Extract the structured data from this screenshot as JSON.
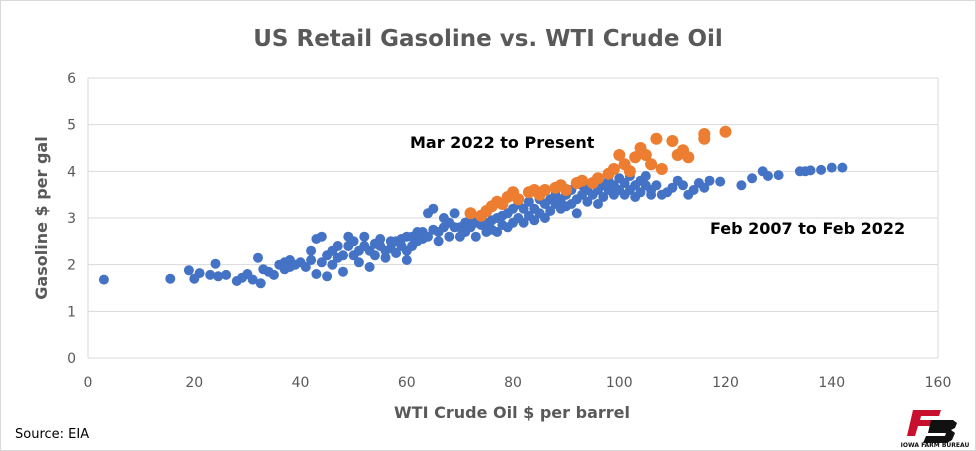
{
  "chart_data": {
    "type": "scatter",
    "title": "US Retail Gasoline vs. WTI Crude Oil",
    "xlabel": "WTI Crude Oil $ per barrel",
    "ylabel": "Gasoline $ per gal",
    "xlim": [
      0,
      160
    ],
    "ylim": [
      0,
      6
    ],
    "xticks": [
      "0",
      "20",
      "40",
      "60",
      "80",
      "100",
      "120",
      "140",
      "160"
    ],
    "yticks": [
      "0",
      "1",
      "2",
      "3",
      "4",
      "5",
      "6"
    ],
    "grid": "horizontal",
    "colors": {
      "blue": "#4472C4",
      "orange": "#ED7D31",
      "grid": "#D9D9D9"
    },
    "series": [
      {
        "label": "Feb 2007 to Feb 2022",
        "color": "#4472C4",
        "points": [
          [
            3,
            1.68
          ],
          [
            15.5,
            1.7
          ],
          [
            19,
            1.88
          ],
          [
            20,
            1.7
          ],
          [
            21,
            1.82
          ],
          [
            23,
            1.78
          ],
          [
            24,
            2.02
          ],
          [
            24.5,
            1.75
          ],
          [
            26,
            1.78
          ],
          [
            28,
            1.65
          ],
          [
            29,
            1.72
          ],
          [
            30,
            1.8
          ],
          [
            31,
            1.68
          ],
          [
            32,
            2.15
          ],
          [
            32.5,
            1.6
          ],
          [
            33,
            1.9
          ],
          [
            34,
            1.85
          ],
          [
            35,
            1.78
          ],
          [
            36,
            2.0
          ],
          [
            37,
            2.05
          ],
          [
            37,
            1.9
          ],
          [
            38,
            1.95
          ],
          [
            38,
            2.1
          ],
          [
            39,
            2.0
          ],
          [
            40,
            2.05
          ],
          [
            41,
            1.95
          ],
          [
            42,
            2.1
          ],
          [
            42,
            2.3
          ],
          [
            43,
            2.55
          ],
          [
            43,
            1.8
          ],
          [
            44,
            2.05
          ],
          [
            44,
            2.6
          ],
          [
            45,
            2.2
          ],
          [
            45,
            1.75
          ],
          [
            46,
            2.3
          ],
          [
            46,
            2.0
          ],
          [
            47,
            2.4
          ],
          [
            47,
            2.15
          ],
          [
            48,
            2.2
          ],
          [
            48,
            1.85
          ],
          [
            49,
            2.4
          ],
          [
            49,
            2.6
          ],
          [
            50,
            2.2
          ],
          [
            50,
            2.5
          ],
          [
            51,
            2.3
          ],
          [
            51,
            2.05
          ],
          [
            52,
            2.4
          ],
          [
            52,
            2.6
          ],
          [
            53,
            2.3
          ],
          [
            53,
            1.95
          ],
          [
            54,
            2.45
          ],
          [
            54,
            2.2
          ],
          [
            55,
            2.4
          ],
          [
            55,
            2.55
          ],
          [
            56,
            2.3
          ],
          [
            56,
            2.15
          ],
          [
            57,
            2.5
          ],
          [
            57,
            2.35
          ],
          [
            58,
            2.5
          ],
          [
            58,
            2.25
          ],
          [
            59,
            2.55
          ],
          [
            59,
            2.4
          ],
          [
            60,
            2.6
          ],
          [
            60,
            2.3
          ],
          [
            60,
            2.1
          ],
          [
            61,
            2.6
          ],
          [
            61,
            2.4
          ],
          [
            62,
            2.7
          ],
          [
            62,
            2.5
          ],
          [
            63,
            2.7
          ],
          [
            63,
            2.55
          ],
          [
            64,
            3.1
          ],
          [
            64,
            2.6
          ],
          [
            65,
            2.75
          ],
          [
            65,
            3.2
          ],
          [
            66,
            2.7
          ],
          [
            66,
            2.5
          ],
          [
            67,
            2.8
          ],
          [
            67,
            3.0
          ],
          [
            68,
            2.9
          ],
          [
            68,
            2.6
          ],
          [
            69,
            2.8
          ],
          [
            69,
            3.1
          ],
          [
            70,
            2.8
          ],
          [
            70,
            2.6
          ],
          [
            71,
            2.9
          ],
          [
            71,
            2.7
          ],
          [
            72,
            2.8
          ],
          [
            72,
            3.0
          ],
          [
            73,
            2.9
          ],
          [
            73,
            2.6
          ],
          [
            74,
            2.85
          ],
          [
            74,
            3.05
          ],
          [
            75,
            2.9
          ],
          [
            75,
            2.7
          ],
          [
            76,
            2.95
          ],
          [
            76,
            2.75
          ],
          [
            77,
            3.0
          ],
          [
            77,
            2.7
          ],
          [
            78,
            3.05
          ],
          [
            78,
            2.85
          ],
          [
            79,
            3.1
          ],
          [
            79,
            2.8
          ],
          [
            80,
            3.2
          ],
          [
            80,
            2.9
          ],
          [
            81,
            3.3
          ],
          [
            81,
            3.0
          ],
          [
            82,
            3.2
          ],
          [
            82,
            2.9
          ],
          [
            83,
            3.35
          ],
          [
            83,
            3.05
          ],
          [
            84,
            3.2
          ],
          [
            84,
            2.95
          ],
          [
            85,
            3.4
          ],
          [
            85,
            3.1
          ],
          [
            86,
            3.3
          ],
          [
            86,
            3.0
          ],
          [
            87,
            3.4
          ],
          [
            87,
            3.15
          ],
          [
            88,
            3.3
          ],
          [
            88,
            3.5
          ],
          [
            89,
            3.4
          ],
          [
            89,
            3.2
          ],
          [
            90,
            3.5
          ],
          [
            90,
            3.25
          ],
          [
            91,
            3.6
          ],
          [
            91,
            3.3
          ],
          [
            92,
            3.4
          ],
          [
            92,
            3.1
          ],
          [
            93,
            3.5
          ],
          [
            93,
            3.7
          ],
          [
            94,
            3.6
          ],
          [
            94,
            3.35
          ],
          [
            95,
            3.5
          ],
          [
            95,
            3.75
          ],
          [
            96,
            3.6
          ],
          [
            96,
            3.3
          ],
          [
            97,
            3.7
          ],
          [
            97,
            3.45
          ],
          [
            98,
            3.6
          ],
          [
            98,
            3.8
          ],
          [
            99,
            3.5
          ],
          [
            99,
            3.7
          ],
          [
            100,
            3.6
          ],
          [
            100,
            3.85
          ],
          [
            101,
            3.5
          ],
          [
            101,
            3.75
          ],
          [
            102,
            3.9
          ],
          [
            102,
            3.6
          ],
          [
            103,
            3.7
          ],
          [
            103,
            3.45
          ],
          [
            104,
            3.8
          ],
          [
            104,
            3.55
          ],
          [
            105,
            3.7
          ],
          [
            105,
            3.9
          ],
          [
            106,
            3.6
          ],
          [
            106,
            3.5
          ],
          [
            107,
            3.7
          ],
          [
            108,
            3.5
          ],
          [
            109,
            3.55
          ],
          [
            110,
            3.65
          ],
          [
            111,
            3.8
          ],
          [
            112,
            3.7
          ],
          [
            113,
            3.5
          ],
          [
            114,
            3.6
          ],
          [
            115,
            3.75
          ],
          [
            116,
            3.65
          ],
          [
            117,
            3.8
          ],
          [
            119,
            3.78
          ],
          [
            123,
            3.7
          ],
          [
            125,
            3.85
          ],
          [
            127,
            4.0
          ],
          [
            128,
            3.9
          ],
          [
            130,
            3.92
          ],
          [
            134,
            4.0
          ],
          [
            135,
            4.0
          ],
          [
            136,
            4.02
          ],
          [
            138,
            4.03
          ],
          [
            140,
            4.08
          ],
          [
            142,
            4.08
          ]
        ]
      },
      {
        "label": "Mar 2022 to Present",
        "color": "#ED7D31",
        "points": [
          [
            72,
            3.1
          ],
          [
            74,
            3.05
          ],
          [
            75,
            3.15
          ],
          [
            76,
            3.25
          ],
          [
            77,
            3.35
          ],
          [
            78,
            3.3
          ],
          [
            79,
            3.45
          ],
          [
            80,
            3.55
          ],
          [
            81,
            3.4
          ],
          [
            83,
            3.55
          ],
          [
            84,
            3.6
          ],
          [
            85,
            3.5
          ],
          [
            86,
            3.6
          ],
          [
            88,
            3.65
          ],
          [
            89,
            3.7
          ],
          [
            90,
            3.6
          ],
          [
            92,
            3.75
          ],
          [
            93,
            3.8
          ],
          [
            95,
            3.75
          ],
          [
            96,
            3.85
          ],
          [
            98,
            3.95
          ],
          [
            99,
            4.05
          ],
          [
            100,
            4.35
          ],
          [
            101,
            4.15
          ],
          [
            102,
            4.0
          ],
          [
            103,
            4.3
          ],
          [
            104,
            4.5
          ],
          [
            105,
            4.35
          ],
          [
            106,
            4.15
          ],
          [
            107,
            4.7
          ],
          [
            108,
            4.05
          ],
          [
            110,
            4.65
          ],
          [
            111,
            4.35
          ],
          [
            112,
            4.45
          ],
          [
            113,
            4.3
          ],
          [
            116,
            4.8
          ],
          [
            116,
            4.7
          ],
          [
            120,
            4.85
          ]
        ]
      }
    ],
    "annotations": [
      {
        "text": "Mar 2022 to Present",
        "series": "orange"
      },
      {
        "text": "Feb 2007 to Feb 2022",
        "series": "blue"
      }
    ]
  },
  "source": "Source: EIA",
  "logo": {
    "mark": "FB",
    "line1": "IOWA FARM BUREAU",
    "line2": "PEOPLE. PROGRESS. PRIDE."
  }
}
